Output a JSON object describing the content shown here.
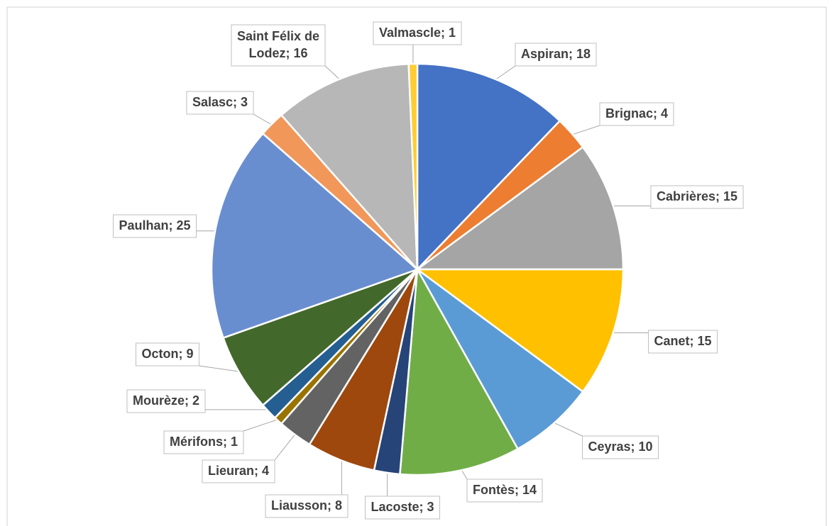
{
  "chart_data": {
    "type": "pie",
    "values": [
      18,
      4,
      15,
      15,
      10,
      14,
      3,
      8,
      4,
      1,
      2,
      9,
      25,
      3,
      16,
      1
    ],
    "value_labels": [
      "Aspiran; 18",
      "Brignac; 4",
      "Cabrières; 15",
      "Canet; 15",
      "Ceyras; 10",
      "Fontès; 14",
      "Lacoste; 3",
      "Liausson; 8",
      "Lieuran; 4",
      "Mérifons; 1",
      "Mourèze; 2",
      "Octon; 9",
      "Paulhan; 25",
      "Salasc; 3",
      "Saint Félix de Lodez; 16",
      "Valmascle; 1"
    ],
    "colors": [
      "#4472c4",
      "#ed7d31",
      "#a5a5a5",
      "#ffc000",
      "#5b9bd5",
      "#70ad47",
      "#264478",
      "#9e480e",
      "#636363",
      "#997300",
      "#255e91",
      "#43682b",
      "#698ed0",
      "#f1975a",
      "#b7b7b7",
      "#ffcd33"
    ]
  }
}
